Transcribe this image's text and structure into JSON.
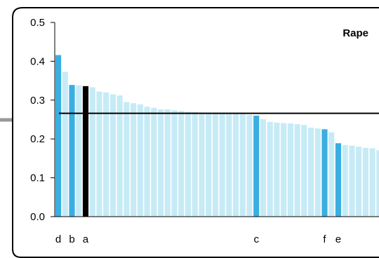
{
  "chart_data": {
    "type": "bar",
    "title": "Rape",
    "xlabel": "",
    "ylabel": "",
    "ylim": [
      0,
      0.5
    ],
    "yticks": [
      "0.0",
      "0.1",
      "0.2",
      "0.3",
      "0.4",
      "0.5"
    ],
    "reference_line": 0.266,
    "colors": {
      "default_bar": "#c6ebf6",
      "highlight_bar": "#3aaee0",
      "selected_bar": "#000000",
      "reference_line": "#000000",
      "frame": "#000000",
      "side_rule": "#999999"
    },
    "bars": [
      {
        "label": "d",
        "value": 0.416,
        "style": "highlight"
      },
      {
        "label": "",
        "value": 0.373,
        "style": "default"
      },
      {
        "label": "b",
        "value": 0.339,
        "style": "highlight"
      },
      {
        "label": "",
        "value": 0.338,
        "style": "default"
      },
      {
        "label": "a",
        "value": 0.336,
        "style": "selected"
      },
      {
        "label": "",
        "value": 0.333,
        "style": "default"
      },
      {
        "label": "",
        "value": 0.322,
        "style": "default"
      },
      {
        "label": "",
        "value": 0.32,
        "style": "default"
      },
      {
        "label": "",
        "value": 0.315,
        "style": "default"
      },
      {
        "label": "",
        "value": 0.312,
        "style": "default"
      },
      {
        "label": "",
        "value": 0.295,
        "style": "default"
      },
      {
        "label": "",
        "value": 0.292,
        "style": "default"
      },
      {
        "label": "",
        "value": 0.289,
        "style": "default"
      },
      {
        "label": "",
        "value": 0.283,
        "style": "default"
      },
      {
        "label": "",
        "value": 0.28,
        "style": "default"
      },
      {
        "label": "",
        "value": 0.276,
        "style": "default"
      },
      {
        "label": "",
        "value": 0.276,
        "style": "default"
      },
      {
        "label": "",
        "value": 0.274,
        "style": "default"
      },
      {
        "label": "",
        "value": 0.272,
        "style": "default"
      },
      {
        "label": "",
        "value": 0.27,
        "style": "default"
      },
      {
        "label": "",
        "value": 0.269,
        "style": "default"
      },
      {
        "label": "",
        "value": 0.268,
        "style": "default"
      },
      {
        "label": "",
        "value": 0.267,
        "style": "default"
      },
      {
        "label": "",
        "value": 0.267,
        "style": "default"
      },
      {
        "label": "",
        "value": 0.266,
        "style": "default"
      },
      {
        "label": "",
        "value": 0.266,
        "style": "default"
      },
      {
        "label": "",
        "value": 0.265,
        "style": "default"
      },
      {
        "label": "",
        "value": 0.264,
        "style": "default"
      },
      {
        "label": "",
        "value": 0.262,
        "style": "default"
      },
      {
        "label": "c",
        "value": 0.26,
        "style": "highlight"
      },
      {
        "label": "",
        "value": 0.251,
        "style": "default"
      },
      {
        "label": "",
        "value": 0.244,
        "style": "default"
      },
      {
        "label": "",
        "value": 0.242,
        "style": "default"
      },
      {
        "label": "",
        "value": 0.241,
        "style": "default"
      },
      {
        "label": "",
        "value": 0.24,
        "style": "default"
      },
      {
        "label": "",
        "value": 0.238,
        "style": "default"
      },
      {
        "label": "",
        "value": 0.236,
        "style": "default"
      },
      {
        "label": "",
        "value": 0.229,
        "style": "default"
      },
      {
        "label": "",
        "value": 0.227,
        "style": "default"
      },
      {
        "label": "f",
        "value": 0.225,
        "style": "highlight"
      },
      {
        "label": "",
        "value": 0.217,
        "style": "default"
      },
      {
        "label": "e",
        "value": 0.189,
        "style": "highlight"
      },
      {
        "label": "",
        "value": 0.184,
        "style": "default"
      },
      {
        "label": "",
        "value": 0.183,
        "style": "default"
      },
      {
        "label": "",
        "value": 0.18,
        "style": "default"
      },
      {
        "label": "",
        "value": 0.177,
        "style": "default"
      },
      {
        "label": "",
        "value": 0.176,
        "style": "default"
      },
      {
        "label": "",
        "value": 0.171,
        "style": "default"
      }
    ]
  }
}
